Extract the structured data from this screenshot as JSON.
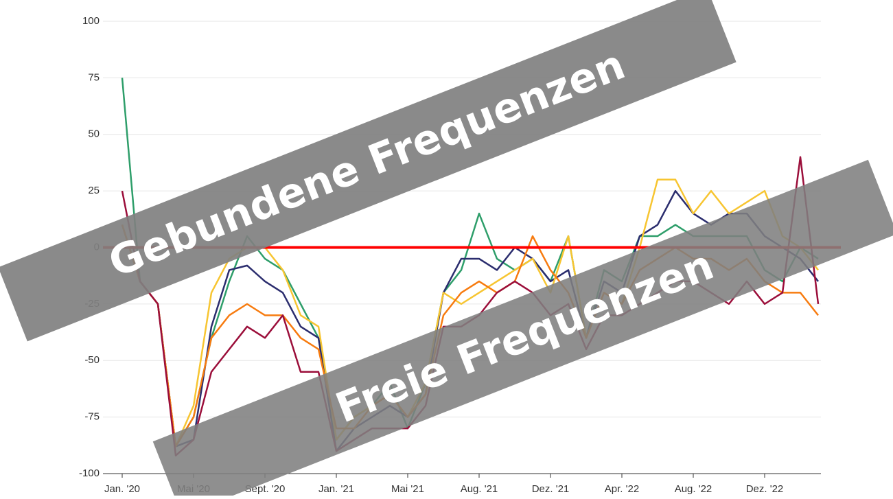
{
  "chart_data": {
    "type": "line",
    "categories": [
      "Jan. '20",
      null,
      null,
      null,
      "Mai '20",
      null,
      null,
      null,
      "Sept. '20",
      null,
      null,
      null,
      "Jan. '21",
      null,
      null,
      null,
      "Mai '21",
      null,
      null,
      null,
      "Aug. '21",
      null,
      null,
      null,
      "Dez. '21",
      null,
      null,
      null,
      "Apr. '22",
      null,
      null,
      null,
      "Aug. '22",
      null,
      null,
      null,
      "Dez. '22",
      null,
      null,
      null
    ],
    "series": [
      {
        "color": "#2e9e6a",
        "values": [
          75,
          -15,
          -25,
          -88,
          -75,
          -40,
          -15,
          5,
          -5,
          -10,
          -25,
          -40,
          -85,
          -75,
          -70,
          -60,
          -80,
          -60,
          -20,
          -10,
          15,
          -5,
          -10,
          -5,
          -15,
          5,
          -40,
          -10,
          -15,
          5,
          5,
          10,
          5,
          5,
          5,
          5,
          -10,
          -15,
          0,
          -5
        ]
      },
      {
        "color": "#2b2d6e",
        "values": [
          10,
          -15,
          -25,
          -88,
          -85,
          -35,
          -10,
          -8,
          -15,
          -20,
          -35,
          -40,
          -90,
          -80,
          -75,
          -70,
          -75,
          -65,
          -20,
          -5,
          -5,
          -10,
          0,
          -5,
          -15,
          -10,
          -40,
          -15,
          -20,
          5,
          10,
          25,
          15,
          10,
          15,
          15,
          5,
          0,
          -5,
          -15
        ]
      },
      {
        "color": "#f7c531",
        "values": [
          10,
          -15,
          -25,
          -88,
          -70,
          -20,
          -5,
          0,
          0,
          -10,
          -30,
          -35,
          -85,
          -75,
          -70,
          -65,
          -75,
          -60,
          -20,
          -25,
          -20,
          -15,
          -10,
          -5,
          -20,
          5,
          -40,
          -20,
          -25,
          0,
          30,
          30,
          15,
          25,
          15,
          20,
          25,
          5,
          0,
          -10
        ]
      },
      {
        "color": "#f77b0f",
        "values": [
          10,
          -15,
          -25,
          -88,
          -75,
          -40,
          -30,
          -25,
          -30,
          -30,
          -40,
          -45,
          -80,
          -80,
          -70,
          -65,
          -75,
          -65,
          -30,
          -20,
          -15,
          -20,
          -15,
          5,
          -10,
          -20,
          -40,
          -20,
          -25,
          -10,
          -5,
          0,
          -5,
          -5,
          -10,
          -5,
          -15,
          -20,
          -20,
          -30
        ]
      },
      {
        "color": "#9b0e3a",
        "values": [
          25,
          -15,
          -25,
          -92,
          -85,
          -55,
          -45,
          -35,
          -40,
          -30,
          -55,
          -55,
          -90,
          -85,
          -80,
          -80,
          -80,
          -70,
          -35,
          -35,
          -30,
          -20,
          -15,
          -20,
          -30,
          -25,
          -45,
          -30,
          -30,
          -25,
          -20,
          -15,
          -15,
          -20,
          -25,
          -15,
          -25,
          -20,
          40,
          -25
        ]
      }
    ],
    "ylim": [
      -100,
      100
    ],
    "yticks": [
      -100,
      -75,
      -50,
      -25,
      0,
      25,
      50,
      75,
      100
    ],
    "grid": true,
    "reference_line": {
      "value": 0,
      "color": "#ff0000"
    },
    "annotations": [
      "Gebundene Frequenzen",
      "Freie Frequenzen"
    ]
  }
}
